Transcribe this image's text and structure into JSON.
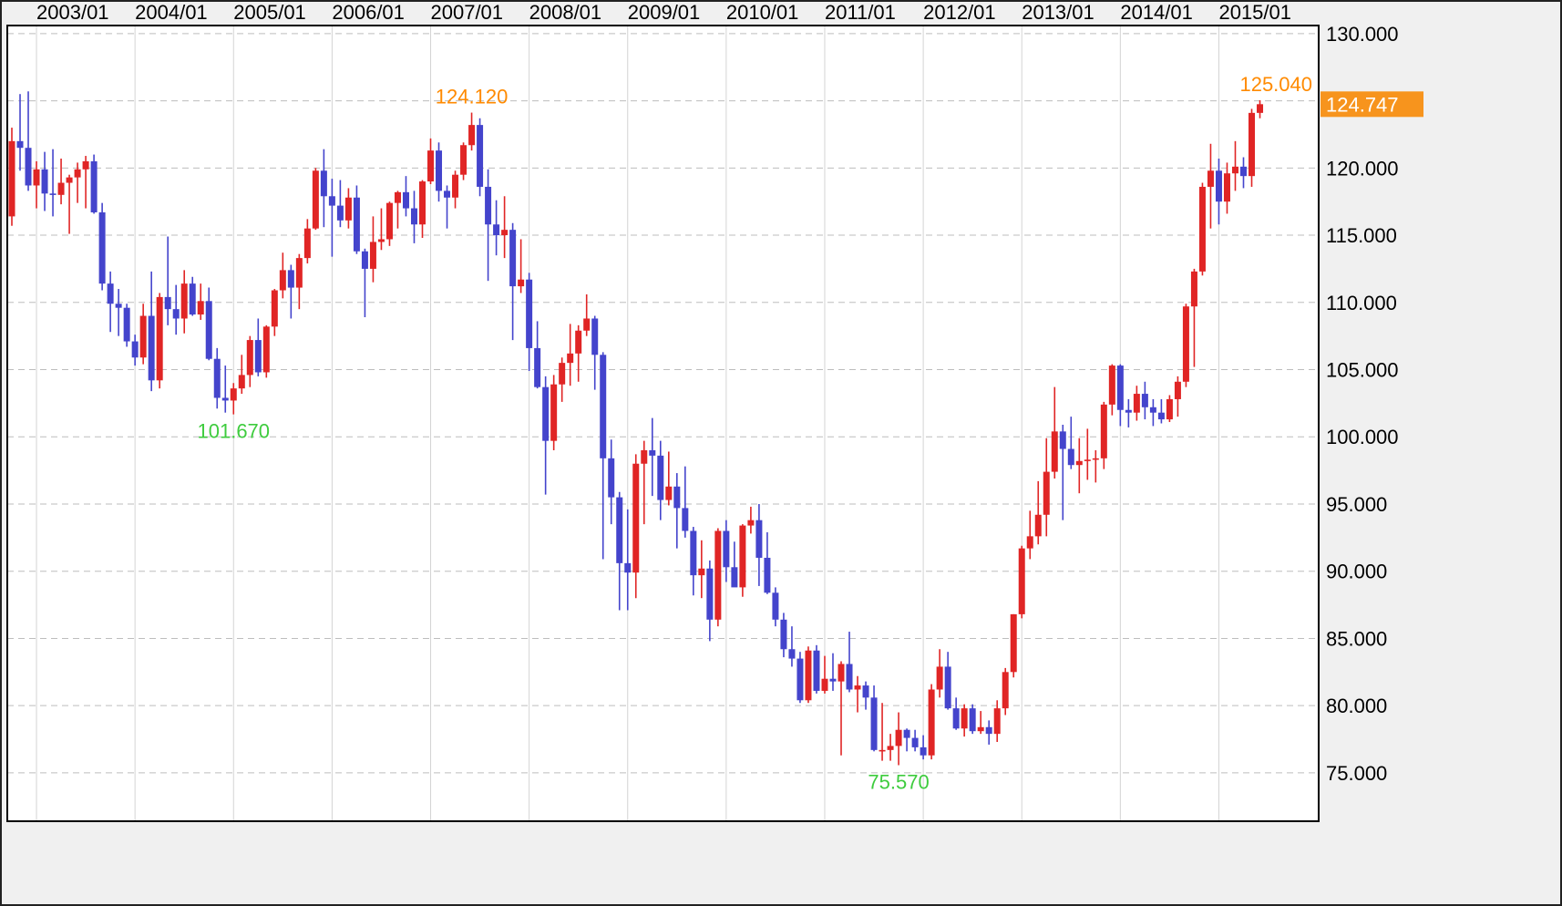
{
  "chart": {
    "current_price": {
      "label": "124.747",
      "value": 124.747
    }
  },
  "colors": {
    "up_candle": "#e02525",
    "down_candle": "#4444cc",
    "high_label": "#ff8a00",
    "low_label": "#3ecc3e",
    "badge_bg": "#f7941d",
    "badge_text": "#ffffff",
    "axis_text": "#000000",
    "grid_vertical": "#d4d4d4",
    "grid_horizontal": "#bdbdbd",
    "plot_bg": "#ffffff",
    "outer_bg": "#f0f0f0",
    "border": "#000000"
  },
  "chart_data": {
    "type": "candlestick",
    "timeframe": "monthly",
    "x_axis_position": "top",
    "y_axis_position": "right",
    "grid": true,
    "legend_position": "none",
    "ylim": [
      71.4,
      130.6
    ],
    "y_ticks": [
      130,
      125,
      120,
      115,
      110,
      105,
      100,
      95,
      90,
      85,
      80,
      75
    ],
    "x_labels": [
      "2003/01",
      "2004/01",
      "2005/01",
      "2006/01",
      "2007/01",
      "2008/01",
      "2009/01",
      "2010/01",
      "2011/01",
      "2012/01",
      "2013/01",
      "2014/01",
      "2015/01"
    ],
    "annotations": [
      {
        "text": "124.120",
        "price": 124.12,
        "month": "2007/06",
        "type": "high"
      },
      {
        "text": "101.670",
        "price": 101.67,
        "month": "2005/01",
        "type": "low"
      },
      {
        "text": "75.570",
        "price": 75.57,
        "month": "2011/10",
        "type": "low"
      },
      {
        "text": "125.040",
        "price": 125.04,
        "month": "2015/06",
        "type": "high"
      }
    ],
    "series_format": [
      "month",
      "open",
      "high",
      "low",
      "close"
    ],
    "series": [
      [
        "2002/10",
        116.4,
        123.0,
        115.7,
        122.0
      ],
      [
        "2002/11",
        122.0,
        125.5,
        119.8,
        121.5
      ],
      [
        "2002/12",
        121.5,
        125.7,
        118.3,
        118.7
      ],
      [
        "2003/01",
        118.7,
        120.5,
        117.0,
        119.9
      ],
      [
        "2003/02",
        119.9,
        121.2,
        116.8,
        118.1
      ],
      [
        "2003/03",
        118.1,
        121.4,
        116.4,
        118.0
      ],
      [
        "2003/04",
        118.0,
        120.7,
        117.3,
        118.9
      ],
      [
        "2003/05",
        118.9,
        119.5,
        115.1,
        119.3
      ],
      [
        "2003/06",
        119.3,
        120.4,
        117.4,
        119.9
      ],
      [
        "2003/07",
        119.9,
        120.9,
        117.0,
        120.5
      ],
      [
        "2003/08",
        120.5,
        121.0,
        116.6,
        116.7
      ],
      [
        "2003/09",
        116.7,
        117.4,
        110.9,
        111.4
      ],
      [
        "2003/10",
        111.4,
        112.3,
        107.8,
        109.9
      ],
      [
        "2003/11",
        109.9,
        111.0,
        107.5,
        109.6
      ],
      [
        "2003/12",
        109.6,
        109.9,
        106.7,
        107.1
      ],
      [
        "2004/01",
        107.1,
        107.6,
        105.3,
        105.9
      ],
      [
        "2004/02",
        105.9,
        109.9,
        105.4,
        109.0
      ],
      [
        "2004/03",
        109.0,
        112.3,
        103.4,
        104.2
      ],
      [
        "2004/04",
        104.2,
        110.7,
        103.6,
        110.4
      ],
      [
        "2004/05",
        110.4,
        114.9,
        108.3,
        109.5
      ],
      [
        "2004/06",
        109.5,
        111.3,
        107.6,
        108.8
      ],
      [
        "2004/07",
        108.8,
        112.4,
        107.7,
        111.4
      ],
      [
        "2004/08",
        111.4,
        111.9,
        109.0,
        109.1
      ],
      [
        "2004/09",
        109.1,
        111.4,
        108.7,
        110.1
      ],
      [
        "2004/10",
        110.1,
        111.1,
        105.7,
        105.8
      ],
      [
        "2004/11",
        105.8,
        106.6,
        102.1,
        102.9
      ],
      [
        "2004/12",
        102.9,
        105.3,
        101.8,
        102.7
      ],
      [
        "2005/01",
        102.7,
        104.0,
        101.67,
        103.6
      ],
      [
        "2005/02",
        103.6,
        106.1,
        103.2,
        104.6
      ],
      [
        "2005/03",
        104.6,
        107.5,
        103.7,
        107.2
      ],
      [
        "2005/04",
        107.2,
        108.8,
        104.5,
        104.8
      ],
      [
        "2005/05",
        104.8,
        108.3,
        104.4,
        108.2
      ],
      [
        "2005/06",
        108.2,
        111.0,
        107.5,
        110.9
      ],
      [
        "2005/07",
        110.9,
        113.7,
        110.3,
        112.4
      ],
      [
        "2005/08",
        112.4,
        112.8,
        108.8,
        111.1
      ],
      [
        "2005/09",
        111.1,
        113.6,
        109.5,
        113.3
      ],
      [
        "2005/10",
        113.3,
        116.2,
        112.9,
        115.5
      ],
      [
        "2005/11",
        115.5,
        120.0,
        115.4,
        119.8
      ],
      [
        "2005/12",
        119.8,
        121.4,
        115.6,
        117.9
      ],
      [
        "2006/01",
        117.9,
        119.2,
        113.4,
        117.2
      ],
      [
        "2006/02",
        117.2,
        119.1,
        115.6,
        116.1
      ],
      [
        "2006/03",
        116.1,
        118.5,
        115.5,
        117.8
      ],
      [
        "2006/04",
        117.8,
        118.7,
        113.6,
        113.8
      ],
      [
        "2006/05",
        113.8,
        114.0,
        108.9,
        112.5
      ],
      [
        "2006/06",
        112.5,
        116.4,
        111.5,
        114.5
      ],
      [
        "2006/07",
        114.5,
        117.0,
        113.9,
        114.7
      ],
      [
        "2006/08",
        114.7,
        117.5,
        114.2,
        117.4
      ],
      [
        "2006/09",
        117.4,
        118.3,
        115.5,
        118.2
      ],
      [
        "2006/10",
        118.2,
        119.4,
        116.4,
        117.0
      ],
      [
        "2006/11",
        117.0,
        118.3,
        114.4,
        115.8
      ],
      [
        "2006/12",
        115.8,
        119.1,
        114.8,
        119.0
      ],
      [
        "2007/01",
        119.0,
        122.2,
        118.8,
        121.3
      ],
      [
        "2007/02",
        121.3,
        121.9,
        117.5,
        118.3
      ],
      [
        "2007/03",
        118.3,
        118.7,
        115.5,
        117.8
      ],
      [
        "2007/04",
        117.8,
        119.8,
        117.0,
        119.5
      ],
      [
        "2007/05",
        119.5,
        121.9,
        119.1,
        121.7
      ],
      [
        "2007/06",
        121.7,
        124.12,
        121.3,
        123.2
      ],
      [
        "2007/07",
        123.2,
        123.7,
        117.9,
        118.6
      ],
      [
        "2007/08",
        118.6,
        119.9,
        111.6,
        115.8
      ],
      [
        "2007/09",
        115.8,
        117.6,
        113.5,
        115.0
      ],
      [
        "2007/10",
        115.0,
        117.9,
        113.3,
        115.4
      ],
      [
        "2007/11",
        115.4,
        115.9,
        107.2,
        111.2
      ],
      [
        "2007/12",
        111.2,
        114.7,
        110.7,
        111.7
      ],
      [
        "2008/01",
        111.7,
        112.2,
        104.9,
        106.6
      ],
      [
        "2008/02",
        106.6,
        108.6,
        103.6,
        103.7
      ],
      [
        "2008/03",
        103.7,
        104.5,
        95.7,
        99.7
      ],
      [
        "2008/04",
        99.7,
        104.6,
        99.0,
        103.9
      ],
      [
        "2008/05",
        103.9,
        105.9,
        102.6,
        105.5
      ],
      [
        "2008/06",
        105.5,
        108.4,
        103.8,
        106.2
      ],
      [
        "2008/07",
        106.2,
        108.3,
        104.1,
        107.9
      ],
      [
        "2008/08",
        107.9,
        110.6,
        107.5,
        108.8
      ],
      [
        "2008/09",
        108.8,
        109.0,
        103.5,
        106.1
      ],
      [
        "2008/10",
        106.1,
        106.3,
        90.9,
        98.4
      ],
      [
        "2008/11",
        98.4,
        99.8,
        93.5,
        95.5
      ],
      [
        "2008/12",
        95.5,
        95.9,
        87.1,
        90.6
      ],
      [
        "2009/01",
        90.6,
        94.6,
        87.1,
        89.9
      ],
      [
        "2009/02",
        89.9,
        98.7,
        88.0,
        98.0
      ],
      [
        "2009/03",
        98.0,
        99.7,
        93.5,
        99.0
      ],
      [
        "2009/04",
        99.0,
        101.4,
        95.6,
        98.6
      ],
      [
        "2009/05",
        98.6,
        99.7,
        93.8,
        95.3
      ],
      [
        "2009/06",
        95.3,
        98.9,
        94.9,
        96.3
      ],
      [
        "2009/07",
        96.3,
        97.3,
        91.7,
        94.7
      ],
      [
        "2009/08",
        94.7,
        97.8,
        92.5,
        93.0
      ],
      [
        "2009/09",
        93.0,
        93.3,
        88.2,
        89.7
      ],
      [
        "2009/10",
        89.7,
        92.3,
        88.0,
        90.2
      ],
      [
        "2009/11",
        90.2,
        90.8,
        84.8,
        86.4
      ],
      [
        "2009/12",
        86.4,
        93.2,
        85.9,
        93.0
      ],
      [
        "2010/01",
        93.0,
        93.8,
        89.2,
        90.3
      ],
      [
        "2010/02",
        90.3,
        92.2,
        88.9,
        88.8
      ],
      [
        "2010/03",
        88.8,
        93.5,
        88.1,
        93.4
      ],
      [
        "2010/04",
        93.4,
        94.8,
        92.8,
        93.8
      ],
      [
        "2010/05",
        93.8,
        95.0,
        88.9,
        91.0
      ],
      [
        "2010/06",
        91.0,
        92.9,
        88.3,
        88.4
      ],
      [
        "2010/07",
        88.4,
        88.8,
        85.9,
        86.4
      ],
      [
        "2010/08",
        86.4,
        86.9,
        83.6,
        84.2
      ],
      [
        "2010/09",
        84.2,
        85.9,
        82.9,
        83.5
      ],
      [
        "2010/10",
        83.5,
        84.0,
        80.2,
        80.4
      ],
      [
        "2010/11",
        80.4,
        84.4,
        80.2,
        84.1
      ],
      [
        "2010/12",
        84.1,
        84.5,
        80.9,
        81.1
      ],
      [
        "2011/01",
        81.1,
        83.7,
        80.9,
        82.0
      ],
      [
        "2011/02",
        82.0,
        83.9,
        81.1,
        81.8
      ],
      [
        "2011/03",
        81.8,
        83.3,
        76.3,
        83.1
      ],
      [
        "2011/04",
        83.1,
        85.5,
        81.0,
        81.2
      ],
      [
        "2011/05",
        81.2,
        82.2,
        79.5,
        81.5
      ],
      [
        "2011/06",
        81.5,
        81.8,
        79.7,
        80.6
      ],
      [
        "2011/07",
        80.6,
        81.5,
        76.6,
        76.7
      ],
      [
        "2011/08",
        76.7,
        80.2,
        75.9,
        76.7
      ],
      [
        "2011/09",
        76.7,
        77.9,
        75.9,
        77.0
      ],
      [
        "2011/10",
        77.0,
        79.5,
        75.57,
        78.2
      ],
      [
        "2011/11",
        78.2,
        78.3,
        76.6,
        77.6
      ],
      [
        "2011/12",
        77.6,
        78.2,
        76.6,
        76.9
      ],
      [
        "2012/01",
        76.9,
        77.8,
        76.0,
        76.3
      ],
      [
        "2012/02",
        76.3,
        81.6,
        76.0,
        81.2
      ],
      [
        "2012/03",
        81.2,
        84.2,
        80.6,
        82.9
      ],
      [
        "2012/04",
        82.9,
        84.0,
        79.7,
        79.8
      ],
      [
        "2012/05",
        79.8,
        80.6,
        78.2,
        78.3
      ],
      [
        "2012/06",
        78.3,
        80.1,
        77.7,
        79.8
      ],
      [
        "2012/07",
        79.8,
        80.1,
        77.9,
        78.1
      ],
      [
        "2012/08",
        78.1,
        79.6,
        77.9,
        78.4
      ],
      [
        "2012/09",
        78.4,
        78.9,
        77.1,
        77.9
      ],
      [
        "2012/10",
        77.9,
        80.4,
        77.3,
        79.8
      ],
      [
        "2012/11",
        79.8,
        82.8,
        79.3,
        82.5
      ],
      [
        "2012/12",
        82.5,
        86.8,
        82.1,
        86.8
      ],
      [
        "2013/01",
        86.8,
        91.9,
        86.5,
        91.7
      ],
      [
        "2013/02",
        91.7,
        94.5,
        90.9,
        92.6
      ],
      [
        "2013/03",
        92.6,
        96.7,
        92.0,
        94.2
      ],
      [
        "2013/04",
        94.2,
        99.9,
        92.6,
        97.4
      ],
      [
        "2013/05",
        97.4,
        103.7,
        96.9,
        100.4
      ],
      [
        "2013/06",
        100.4,
        100.9,
        93.8,
        99.1
      ],
      [
        "2013/07",
        99.1,
        101.5,
        97.6,
        97.9
      ],
      [
        "2013/08",
        97.9,
        99.9,
        95.8,
        98.2
      ],
      [
        "2013/09",
        98.2,
        100.6,
        96.8,
        98.3
      ],
      [
        "2013/10",
        98.3,
        99.0,
        96.6,
        98.4
      ],
      [
        "2013/11",
        98.4,
        102.6,
        97.6,
        102.4
      ],
      [
        "2013/12",
        102.4,
        105.4,
        101.6,
        105.3
      ],
      [
        "2014/01",
        105.3,
        105.4,
        100.8,
        102.0
      ],
      [
        "2014/02",
        102.0,
        102.8,
        100.7,
        101.8
      ],
      [
        "2014/03",
        101.8,
        103.8,
        101.2,
        103.2
      ],
      [
        "2014/04",
        103.2,
        104.1,
        101.3,
        102.2
      ],
      [
        "2014/05",
        102.2,
        102.8,
        100.8,
        101.8
      ],
      [
        "2014/06",
        101.8,
        102.8,
        101.0,
        101.3
      ],
      [
        "2014/07",
        101.3,
        103.1,
        101.1,
        102.8
      ],
      [
        "2014/08",
        102.8,
        104.5,
        101.5,
        104.1
      ],
      [
        "2014/09",
        104.1,
        109.9,
        103.7,
        109.7
      ],
      [
        "2014/10",
        109.7,
        112.5,
        105.2,
        112.3
      ],
      [
        "2014/11",
        112.3,
        118.9,
        112.0,
        118.6
      ],
      [
        "2014/12",
        118.6,
        121.8,
        115.5,
        119.8
      ],
      [
        "2015/01",
        119.8,
        120.7,
        115.8,
        117.5
      ],
      [
        "2015/02",
        117.5,
        120.4,
        116.6,
        119.6
      ],
      [
        "2015/03",
        119.6,
        122.0,
        118.3,
        120.1
      ],
      [
        "2015/04",
        120.1,
        120.8,
        118.5,
        119.4
      ],
      [
        "2015/05",
        119.4,
        124.4,
        118.6,
        124.1
      ],
      [
        "2015/06",
        124.1,
        125.04,
        123.7,
        124.747
      ]
    ]
  }
}
